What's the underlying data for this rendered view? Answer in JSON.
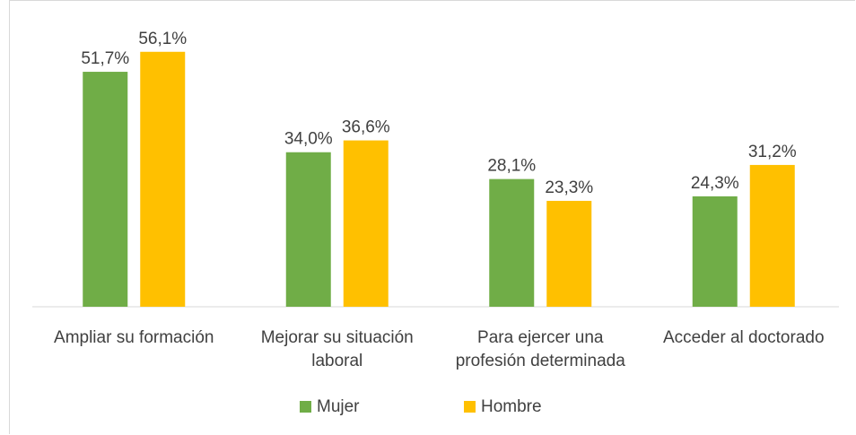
{
  "chart_data": {
    "type": "bar",
    "categories": [
      "Ampliar su formación",
      "Mejorar su situación laboral",
      "Para ejercer una profesión determinada",
      "Acceder al doctorado"
    ],
    "series": [
      {
        "name": "Mujer",
        "color": "#70ad47",
        "values": [
          51.7,
          34.0,
          28.1,
          24.3
        ],
        "value_labels": [
          "51,7%",
          "34,0%",
          "28,1%",
          "24,3%"
        ]
      },
      {
        "name": "Hombre",
        "color": "#ffc000",
        "values": [
          56.1,
          36.6,
          23.3,
          31.2
        ],
        "value_labels": [
          "56,1%",
          "36,6%",
          "23,3%",
          "31,2%"
        ]
      }
    ],
    "ylim": [
      0,
      60
    ],
    "legend": "bottom"
  }
}
